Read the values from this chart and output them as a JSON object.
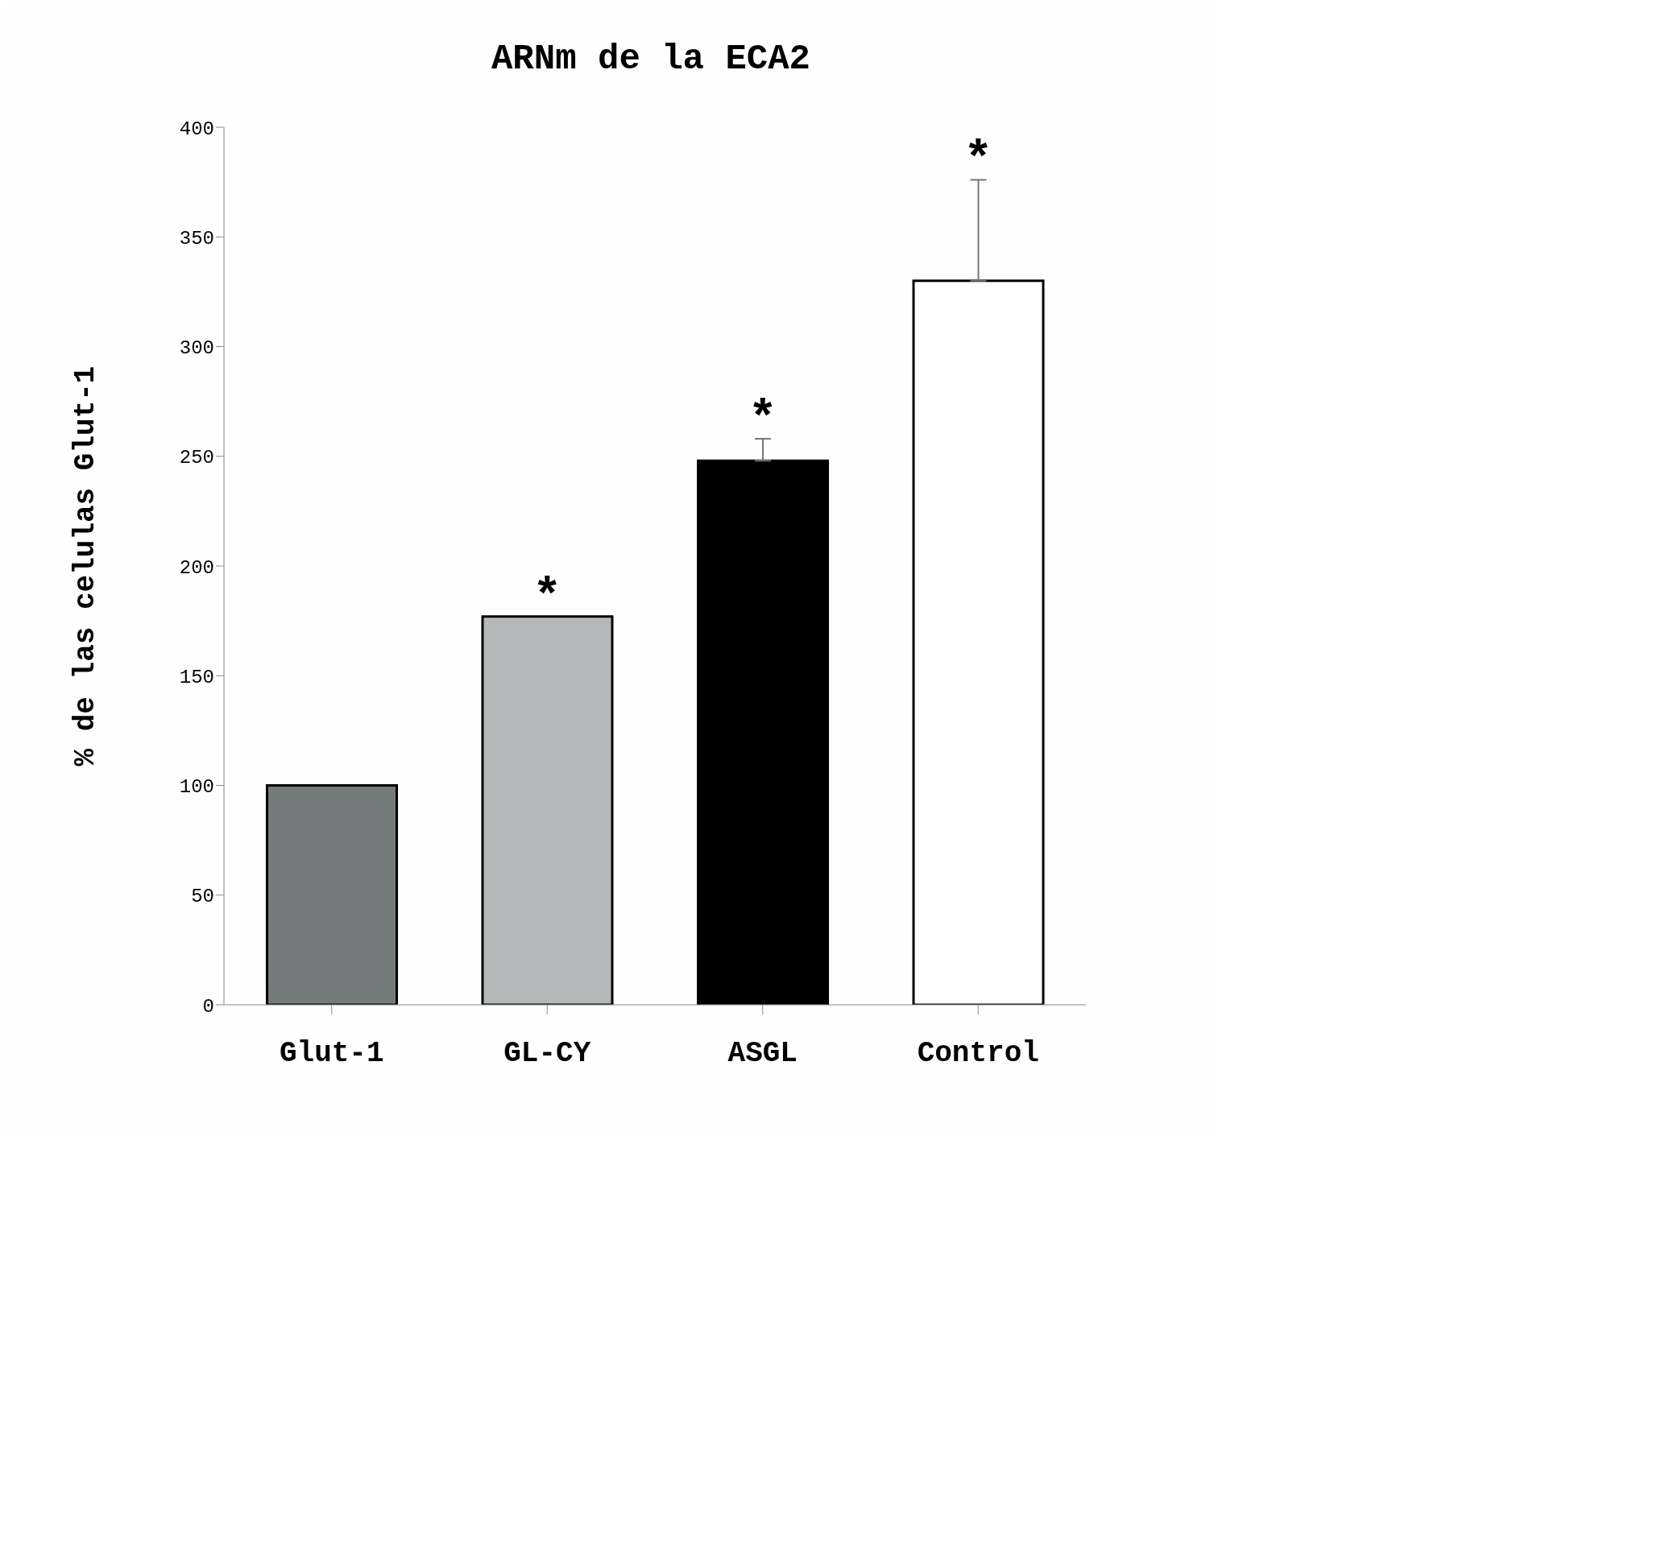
{
  "chart_data": {
    "type": "bar",
    "title": "ARNm de la ECA2",
    "ylabel": "% de las celulas Glut-1",
    "categories": [
      "Glut-1",
      "GL-CY",
      "ASGL",
      "Control"
    ],
    "values": [
      100,
      177,
      248,
      330
    ],
    "colors": [
      "#747b7b",
      "#b4b8b8",
      "#000000",
      "#ffffff"
    ],
    "errors": [
      null,
      null,
      [
        248,
        258
      ],
      [
        330,
        376
      ]
    ],
    "ylim": [
      0,
      400
    ],
    "yticks": [
      0,
      50,
      100,
      150,
      200,
      250,
      300,
      350,
      400
    ],
    "grid": false,
    "legend": false,
    "annotations": [
      {
        "text": "*",
        "x": "GL-CY",
        "y": 177
      },
      {
        "text": "*",
        "x": "ASGL",
        "y": 248
      },
      {
        "text": "*",
        "x": "Control",
        "y": 330
      }
    ]
  }
}
